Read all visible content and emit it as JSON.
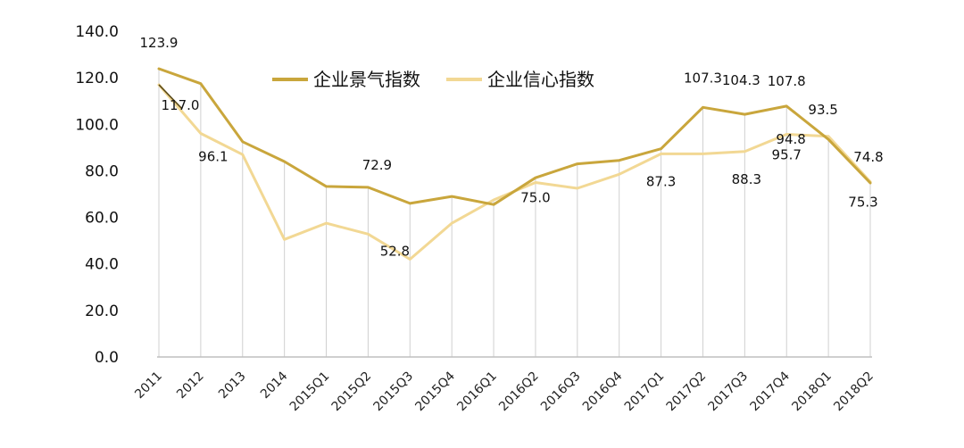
{
  "chart_data": {
    "type": "line",
    "title": "",
    "xlabel": "",
    "ylabel": "",
    "ylim": [
      0,
      140
    ],
    "yticks": [
      0,
      20,
      40,
      60,
      80,
      100,
      120,
      140
    ],
    "ytick_labels": [
      "0.0",
      "20.0",
      "40.0",
      "60.0",
      "80.0",
      "100.0",
      "120.0",
      "140.0"
    ],
    "grid": "vertical",
    "legend_position": "top-center",
    "categories": [
      "2011",
      "2012",
      "2013",
      "2014",
      "2015Q1",
      "2015Q2",
      "2015Q3",
      "2015Q4",
      "2016Q1",
      "2016Q2",
      "2016Q3",
      "2016Q4",
      "2017Q1",
      "2017Q2",
      "2017Q3",
      "2017Q4",
      "2018Q1",
      "2018Q2"
    ],
    "series": [
      {
        "name": "企业景气指数",
        "color": "#c9a63c",
        "values": [
          123.9,
          117.5,
          92.5,
          84.0,
          73.3,
          72.9,
          66.0,
          69.0,
          65.5,
          77.0,
          83.0,
          84.5,
          89.5,
          107.3,
          104.3,
          107.8,
          93.5,
          74.8
        ]
      },
      {
        "name": "企业信心指数",
        "color": "#f2d894",
        "values": [
          117.0,
          96.1,
          87.0,
          50.5,
          57.5,
          52.8,
          42.0,
          57.5,
          67.5,
          75.0,
          72.5,
          78.5,
          87.3,
          87.3,
          88.3,
          95.7,
          94.8,
          75.3
        ]
      }
    ],
    "data_labels": [
      {
        "text": "123.9",
        "category": "2011",
        "value": 123.9
      },
      {
        "text": "117.0",
        "category": "2011",
        "value": 117.0
      },
      {
        "text": "96.1",
        "category": "2012",
        "value": 96.1
      },
      {
        "text": "72.9",
        "category": "2015Q2",
        "value": 72.9
      },
      {
        "text": "52.8",
        "category": "2015Q2",
        "value": 52.8
      },
      {
        "text": "75.0",
        "category": "2016Q2",
        "value": 75.0
      },
      {
        "text": "107.3",
        "category": "2017Q2",
        "value": 107.3
      },
      {
        "text": "104.3",
        "category": "2017Q3",
        "value": 104.3
      },
      {
        "text": "107.8",
        "category": "2017Q4",
        "value": 107.8
      },
      {
        "text": "87.3",
        "category": "2017Q1",
        "value": 87.3
      },
      {
        "text": "88.3",
        "category": "2017Q3",
        "value": 88.3
      },
      {
        "text": "95.7",
        "category": "2017Q4",
        "value": 95.7
      },
      {
        "text": "93.5",
        "category": "2018Q1",
        "value": 93.5
      },
      {
        "text": "94.8",
        "category": "2018Q1",
        "value": 94.8
      },
      {
        "text": "74.8",
        "category": "2018Q2",
        "value": 74.8
      },
      {
        "text": "75.3",
        "category": "2018Q2",
        "value": 75.3
      }
    ]
  }
}
